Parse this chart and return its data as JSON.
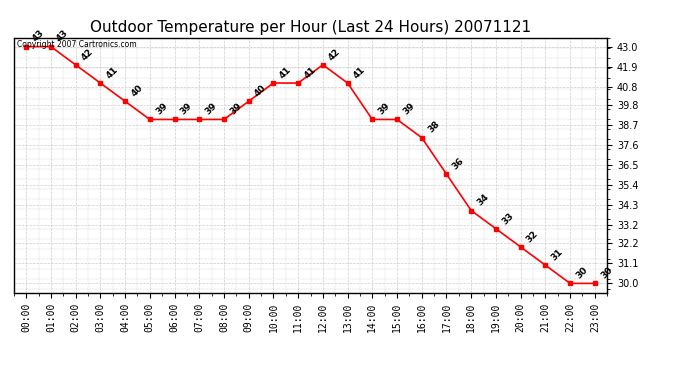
{
  "title": "Outdoor Temperature per Hour (Last 24 Hours) 20071121",
  "hours": [
    "00:00",
    "01:00",
    "02:00",
    "03:00",
    "04:00",
    "05:00",
    "06:00",
    "07:00",
    "08:00",
    "09:00",
    "10:00",
    "11:00",
    "12:00",
    "13:00",
    "14:00",
    "15:00",
    "16:00",
    "17:00",
    "18:00",
    "19:00",
    "20:00",
    "21:00",
    "22:00",
    "23:00"
  ],
  "temps": [
    43,
    43,
    42,
    41,
    40,
    39,
    39,
    39,
    39,
    40,
    41,
    41,
    42,
    41,
    39,
    39,
    38,
    36,
    34,
    33,
    32,
    31,
    30,
    30
  ],
  "ylim": [
    29.5,
    43.5
  ],
  "yticks": [
    30.0,
    31.1,
    32.2,
    33.2,
    34.3,
    35.4,
    36.5,
    37.6,
    38.7,
    39.8,
    40.8,
    41.9,
    43.0
  ],
  "line_color": "red",
  "marker": "s",
  "marker_color": "red",
  "marker_size": 3,
  "grid_color": "#cccccc",
  "bg_color": "#ffffff",
  "plot_bg_color": "#ffffff",
  "copyright_text": "Copyright 2007 Cartronics.com",
  "title_fontsize": 11,
  "tick_fontsize": 7,
  "annot_fontsize": 6.5
}
